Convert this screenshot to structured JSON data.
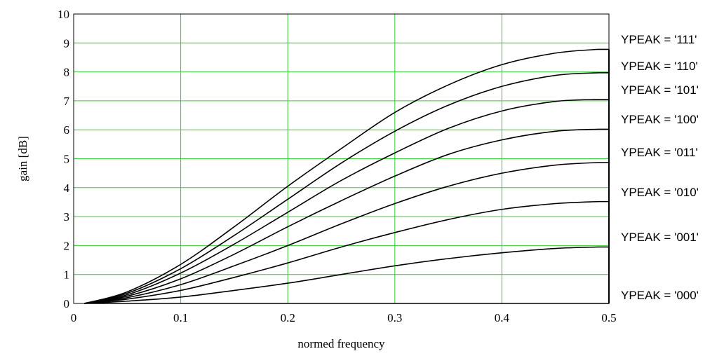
{
  "chart_data": {
    "type": "line",
    "title": "",
    "xlabel": "normed frequency",
    "ylabel": "gain [dB]",
    "xlim": [
      0,
      0.5
    ],
    "ylim": [
      0,
      10
    ],
    "xticks": [
      0,
      0.1,
      0.2,
      0.3,
      0.4,
      0.5
    ],
    "xtick_labels": [
      "0",
      "0.1",
      "0.2",
      "0.3",
      "0.4",
      "0.5"
    ],
    "yticks": [
      0,
      1,
      2,
      3,
      4,
      5,
      6,
      7,
      8,
      9,
      10
    ],
    "ytick_labels": [
      "0",
      "1",
      "2",
      "3",
      "4",
      "5",
      "6",
      "7",
      "8",
      "9",
      "10"
    ],
    "grid": true,
    "grid_color": "#33cc33",
    "line_color": "#000000",
    "x": [
      0.01,
      0.05,
      0.1,
      0.15,
      0.2,
      0.25,
      0.3,
      0.35,
      0.4,
      0.45,
      0.49
    ],
    "series": [
      {
        "name": "YPEAK = '111'",
        "values": [
          0.0,
          0.4,
          1.35,
          2.65,
          4.05,
          5.35,
          6.6,
          7.55,
          8.25,
          8.65,
          8.78
        ]
      },
      {
        "name": "YPEAK = '110'",
        "values": [
          0.0,
          0.35,
          1.2,
          2.35,
          3.6,
          4.85,
          5.95,
          6.85,
          7.5,
          7.88,
          7.97
        ]
      },
      {
        "name": "YPEAK = '101'",
        "values": [
          0.0,
          0.3,
          1.05,
          2.05,
          3.15,
          4.25,
          5.2,
          6.05,
          6.65,
          6.98,
          7.05
        ]
      },
      {
        "name": "YPEAK = '100'",
        "values": [
          0.0,
          0.25,
          0.85,
          1.7,
          2.65,
          3.55,
          4.4,
          5.15,
          5.65,
          5.95,
          6.02
        ]
      },
      {
        "name": "YPEAK = '011'",
        "values": [
          0.0,
          0.2,
          0.65,
          1.3,
          2.0,
          2.75,
          3.45,
          4.05,
          4.5,
          4.78,
          4.87
        ]
      },
      {
        "name": "YPEAK = '010'",
        "values": [
          0.0,
          0.15,
          0.45,
          0.9,
          1.4,
          1.95,
          2.45,
          2.9,
          3.25,
          3.45,
          3.52
        ]
      },
      {
        "name": "YPEAK = '001'",
        "values": [
          0.0,
          0.08,
          0.22,
          0.45,
          0.7,
          1.0,
          1.3,
          1.55,
          1.75,
          1.9,
          1.95
        ]
      },
      {
        "name": "YPEAK = '000'",
        "values": [
          0.0,
          0.0,
          0.0,
          0.0,
          0.0,
          0.0,
          0.0,
          0.0,
          0.0,
          0.0,
          0.0
        ]
      }
    ]
  }
}
